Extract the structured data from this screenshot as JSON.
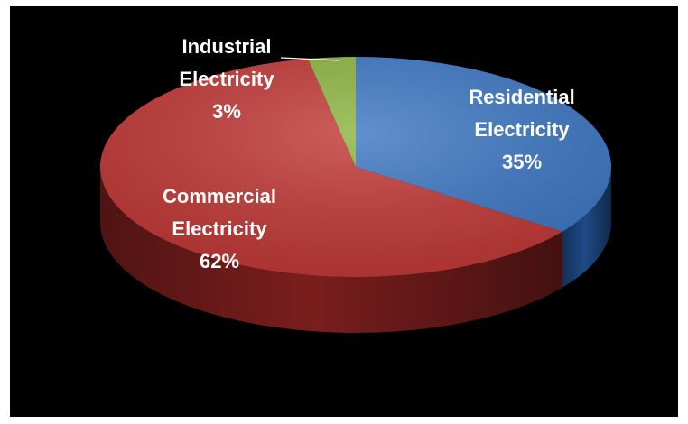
{
  "chart_data": {
    "type": "pie",
    "style": "3d",
    "title": "",
    "background": "#000000",
    "slices": [
      {
        "label_line1": "Residential",
        "label_line2": "Electricity",
        "pct_label": "35%",
        "value": 35,
        "color": "#3e78c4",
        "side_color": "#1f4a86",
        "label_color": "#ffffff"
      },
      {
        "label_line1": "Commercial",
        "label_line2": "Electricity",
        "pct_label": "62%",
        "value": 62,
        "color": "#c23a38",
        "side_color": "#7a1e1d",
        "label_color": "#ffffff"
      },
      {
        "label_line1": "Industrial",
        "label_line2": "Electricity",
        "pct_label": "3%",
        "value": 3,
        "color": "#8db542",
        "side_color": "#5b7a26",
        "label_color": "#ffffff"
      }
    ]
  }
}
